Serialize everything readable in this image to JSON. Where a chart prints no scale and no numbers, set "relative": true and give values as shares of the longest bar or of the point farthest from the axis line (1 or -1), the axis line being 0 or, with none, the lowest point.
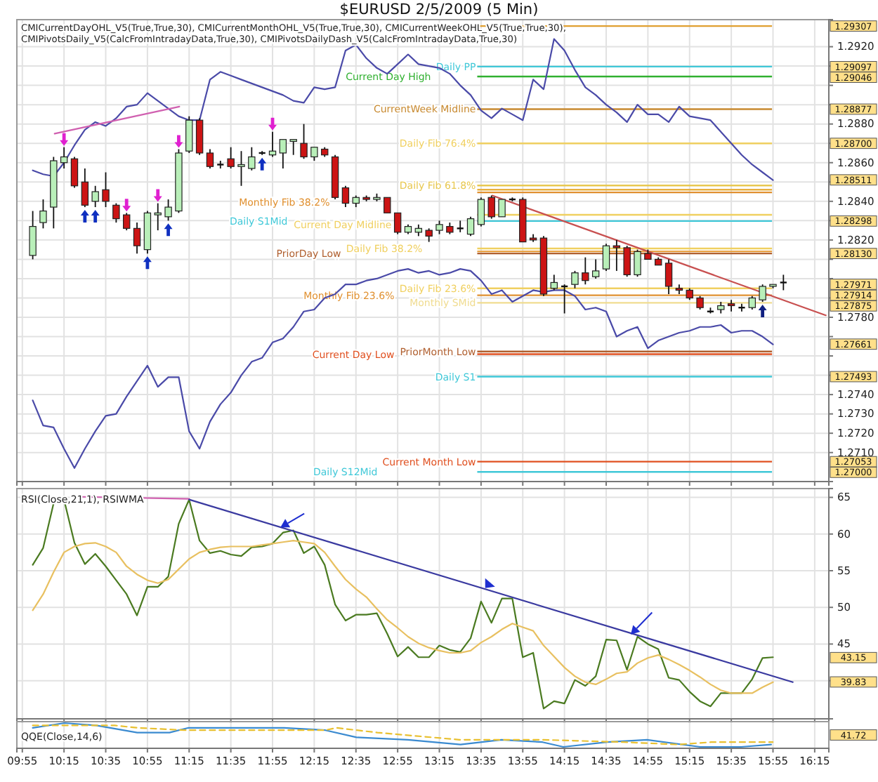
{
  "chart_data": [
    {
      "type": "candlestick",
      "title": "$EURUSD  2/5/2009 (5 Min)",
      "subtitle": "CMICurrentDayOHL_V5(True,True,30), CMICurrentMonthOHL_V5(True,True,30), CMICurrentWeekOHL_V5(True,True,30), CMIPivotsDaily_V5(CalcFromIntradayData,True,30), CMIPivotsDailyDash_V5(CalcFromIntradayData,True,30)",
      "x": [
        10,
        10.0833,
        10.1667,
        10.25,
        10.3333,
        10.4167,
        10.5,
        10.5833,
        10.6667,
        10.75,
        10.8333,
        10.9167,
        11,
        11.0833,
        11.1667,
        11.25,
        11.3333,
        11.4167,
        11.5,
        11.5833,
        11.6667,
        11.75,
        11.8333,
        11.9167,
        12,
        12.0833,
        12.1667,
        12.25,
        12.3333,
        12.4167,
        12.5,
        12.5833,
        12.6667,
        12.75,
        12.8333,
        12.9167,
        13,
        13.0833,
        13.1667,
        13.25,
        13.3333,
        13.4167,
        13.5,
        13.5833,
        13.6667,
        13.75,
        13.8333,
        13.9167,
        14,
        14.0833,
        14.1667,
        14.25,
        14.3333,
        14.4167,
        14.5,
        14.5833,
        14.6667,
        14.75,
        14.8333,
        14.9167,
        15,
        15.0833,
        15.1667,
        15.25,
        15.3333,
        15.4167,
        15.5,
        15.5833,
        15.6667,
        15.75,
        15.8333,
        15.9167,
        16
      ],
      "ohlc": [
        [
          1.2812,
          1.2835,
          1.281,
          1.2827
        ],
        [
          1.2829,
          1.2841,
          1.2826,
          1.2835
        ],
        [
          1.2837,
          1.2863,
          1.2826,
          1.2861
        ],
        [
          1.286,
          1.2868,
          1.2857,
          1.2863
        ],
        [
          1.2862,
          1.2863,
          1.2847,
          1.2848
        ],
        [
          1.285,
          1.2857,
          1.2837,
          1.2838
        ],
        [
          1.284,
          1.2848,
          1.2837,
          1.2845
        ],
        [
          1.2846,
          1.2855,
          1.2837,
          1.284
        ],
        [
          1.2838,
          1.2839,
          1.2829,
          1.2831
        ],
        [
          1.2833,
          1.2834,
          1.2825,
          1.2826
        ],
        [
          1.2826,
          1.2829,
          1.2813,
          1.2817
        ],
        [
          1.2815,
          1.2835,
          1.2813,
          1.2834
        ],
        [
          1.2833,
          1.2839,
          1.2825,
          1.2834
        ],
        [
          1.2832,
          1.2841,
          1.283,
          1.2837
        ],
        [
          1.2835,
          1.2867,
          1.2834,
          1.2865
        ],
        [
          1.2866,
          1.2884,
          1.2865,
          1.2882
        ],
        [
          1.2882,
          1.2883,
          1.2864,
          1.2865
        ],
        [
          1.2865,
          1.2867,
          1.2857,
          1.2858
        ],
        [
          1.2859,
          1.2861,
          1.2857,
          1.2859
        ],
        [
          1.2862,
          1.2868,
          1.2857,
          1.2858
        ],
        [
          1.2858,
          1.2866,
          1.2848,
          1.2859
        ],
        [
          1.2857,
          1.2868,
          1.2856,
          1.2863
        ],
        [
          1.2865,
          1.2866,
          1.2864,
          1.2865
        ],
        [
          1.2864,
          1.2876,
          1.2863,
          1.2866
        ],
        [
          1.2865,
          1.2872,
          1.2857,
          1.2872
        ],
        [
          1.2871,
          1.2872,
          1.2864,
          1.2872
        ],
        [
          1.287,
          1.288,
          1.2862,
          1.2863
        ],
        [
          1.2863,
          1.2868,
          1.2861,
          1.2868
        ],
        [
          1.2867,
          1.2868,
          1.2863,
          1.2864
        ],
        [
          1.2863,
          1.2864,
          1.2841,
          1.2842
        ],
        [
          1.2847,
          1.2848,
          1.2837,
          1.2839
        ],
        [
          1.2839,
          1.2843,
          1.2837,
          1.2842
        ],
        [
          1.2842,
          1.2843,
          1.284,
          1.2841
        ],
        [
          1.2841,
          1.2844,
          1.284,
          1.2842
        ],
        [
          1.2842,
          1.2842,
          1.2834,
          1.2834
        ],
        [
          1.2834,
          1.2834,
          1.2823,
          1.2824
        ],
        [
          1.2824,
          1.2828,
          1.2823,
          1.2827
        ],
        [
          1.2824,
          1.2828,
          1.2822,
          1.2826
        ],
        [
          1.2825,
          1.2826,
          1.2819,
          1.2822
        ],
        [
          1.2825,
          1.283,
          1.2823,
          1.2828
        ],
        [
          1.2827,
          1.2829,
          1.2823,
          1.2824
        ],
        [
          1.2826,
          1.283,
          1.2824,
          1.2826
        ],
        [
          1.2823,
          1.2832,
          1.2822,
          1.2831
        ],
        [
          1.2828,
          1.2842,
          1.2827,
          1.2841
        ],
        [
          1.2842,
          1.2843,
          1.2831,
          1.2832
        ],
        [
          1.2832,
          1.2841,
          1.2832,
          1.2841
        ],
        [
          1.2841,
          1.2842,
          1.284,
          1.2841
        ],
        [
          1.2841,
          1.2842,
          1.2819,
          1.2819
        ],
        [
          1.2821,
          1.2823,
          1.2819,
          1.282
        ],
        [
          1.2821,
          1.2822,
          1.2791,
          1.2792
        ],
        [
          1.2795,
          1.2802,
          1.2794,
          1.2798
        ],
        [
          1.2796,
          1.2797,
          1.2782,
          1.2796
        ],
        [
          1.2797,
          1.2804,
          1.2795,
          1.2803
        ],
        [
          1.2803,
          1.2811,
          1.2797,
          1.2799
        ],
        [
          1.2801,
          1.281,
          1.28,
          1.2804
        ],
        [
          1.2805,
          1.2818,
          1.2804,
          1.2817
        ],
        [
          1.2817,
          1.282,
          1.2804,
          1.2816
        ],
        [
          1.2816,
          1.2817,
          1.2801,
          1.2802
        ],
        [
          1.2802,
          1.2815,
          1.2801,
          1.2814
        ],
        [
          1.2813,
          1.2815,
          1.281,
          1.281
        ],
        [
          1.281,
          1.2811,
          1.2807,
          1.2807
        ],
        [
          1.2808,
          1.281,
          1.2792,
          1.2796
        ],
        [
          1.2795,
          1.2797,
          1.2792,
          1.2794
        ],
        [
          1.2794,
          1.2795,
          1.2789,
          1.279
        ],
        [
          1.279,
          1.2791,
          1.2784,
          1.2785
        ],
        [
          1.2783,
          1.2785,
          1.2782,
          1.2783
        ],
        [
          1.2784,
          1.2788,
          1.2782,
          1.2786
        ],
        [
          1.2787,
          1.2789,
          1.2783,
          1.2786
        ],
        [
          1.2785,
          1.2787,
          1.2783,
          1.2785
        ],
        [
          1.2785,
          1.2791,
          1.2784,
          1.279
        ],
        [
          1.2789,
          1.2797,
          1.2788,
          1.2796
        ],
        [
          1.2796,
          1.2797,
          1.2795,
          1.2797
        ],
        [
          1.2798,
          1.2802,
          1.2794,
          1.2798
        ]
      ],
      "series": [
        {
          "type": "line",
          "color": "#4a4aa8",
          "values": [
            1.2856,
            1.2854,
            1.2853,
            1.286,
            1.2869,
            1.2877,
            1.2881,
            1.2879,
            1.2883,
            1.2889,
            1.289,
            1.2896,
            1.2892,
            1.2888,
            1.2884,
            1.2882,
            1.2882,
            1.2903,
            1.2907,
            1.2905,
            1.2903,
            1.2901,
            1.2899,
            1.2897,
            1.2895,
            1.2892,
            1.2891,
            1.2899,
            1.2898,
            1.2899,
            1.2918,
            1.2921,
            1.2914,
            1.2909,
            1.2906,
            1.2911,
            1.2916,
            1.2911,
            1.291,
            1.2909,
            1.2906,
            1.29,
            1.2895,
            1.2887,
            1.2883,
            1.2888,
            1.2885,
            1.2882,
            1.2903,
            1.2898,
            1.2924,
            1.2918,
            1.2908,
            1.2899,
            1.2895,
            1.289,
            1.2886,
            1.2881,
            1.289,
            1.2885,
            1.2885,
            1.2881,
            1.2889,
            1.2884,
            1.2883,
            1.2882,
            1.2876,
            1.287,
            1.2864,
            1.2859,
            1.2855,
            1.2851,
            null
          ]
        },
        {
          "type": "line",
          "color": "#4a4aa8",
          "values": [
            1.2737,
            1.2724,
            1.2723,
            1.2712,
            1.2702,
            1.2712,
            1.2721,
            1.2729,
            1.273,
            1.2739,
            1.2747,
            1.2755,
            1.2744,
            1.2749,
            1.2749,
            1.2721,
            1.2712,
            1.2726,
            1.2735,
            1.2741,
            1.275,
            1.2757,
            1.2759,
            1.2767,
            1.2769,
            1.2775,
            1.2783,
            1.2784,
            1.279,
            1.2792,
            1.2797,
            1.2797,
            1.2799,
            1.28,
            1.2802,
            1.2804,
            1.2805,
            1.2803,
            1.2804,
            1.2802,
            1.2803,
            1.2805,
            1.2804,
            1.2799,
            1.2792,
            1.2794,
            1.2788,
            1.2791,
            1.2794,
            1.2793,
            1.2794,
            1.2794,
            1.2791,
            1.2784,
            1.2785,
            1.2783,
            1.277,
            1.2773,
            1.2775,
            1.2764,
            1.2768,
            1.277,
            1.2772,
            1.2773,
            1.2775,
            1.2775,
            1.2776,
            1.2772,
            1.2773,
            1.2773,
            1.277,
            1.2766,
            null
          ]
        },
        {
          "type": "line",
          "color": "#d060b0",
          "x": [
            10.175,
            11.172
          ],
          "values": [
            1.2875,
            1.2889
          ]
        },
        {
          "type": "line",
          "color": "#c85050",
          "x": [
            13.673,
            16.339
          ],
          "values": [
            1.2843,
            1.2781
          ]
        }
      ],
      "ref_lines": [
        {
          "axis": "y",
          "value": 1.29307,
          "label": null,
          "color": "#e0a030"
        },
        {
          "axis": "y",
          "value": 1.29097,
          "label": "Daily PP",
          "color": "#40c8d8"
        },
        {
          "axis": "y",
          "value": 1.29046,
          "label": "Current Day High",
          "color": "#30b030"
        },
        {
          "axis": "y",
          "value": 1.28877,
          "label": "CurrentWeek Midline",
          "color": "#c88a30"
        },
        {
          "axis": "y",
          "value": 1.287,
          "label": "Daily Fib 76.4%",
          "color": "#f0d060"
        },
        {
          "axis": "y",
          "value": 1.28482,
          "label": "Daily Fib 61.8%",
          "color": "#e8c850"
        },
        {
          "axis": "y",
          "value": 1.2846,
          "label": null,
          "color": "#e8b040"
        },
        {
          "axis": "y",
          "value": 1.28446,
          "label": "Monthly Fib 38.2%",
          "color": "#e09030"
        },
        {
          "axis": "y",
          "value": 1.2833,
          "label": "Current Day Midline",
          "color": "#f0d060"
        },
        {
          "axis": "y",
          "value": 1.28298,
          "label": "Daily S1Mid",
          "color": "#40c8d8"
        },
        {
          "axis": "y",
          "value": 1.28156,
          "label": "Daily Fib 38.2%",
          "color": "#f0d060"
        },
        {
          "axis": "y",
          "value": 1.28141,
          "label": null,
          "color": "#e8a040"
        },
        {
          "axis": "y",
          "value": 1.2813,
          "label": "PriorDay Low",
          "color": "#b06030"
        },
        {
          "axis": "y",
          "value": 1.2795,
          "label": "Daily Fib 23.6%",
          "color": "#f0d060"
        },
        {
          "axis": "y",
          "value": 1.27914,
          "label": "Monthly Fib 23.6%",
          "color": "#e09030"
        },
        {
          "axis": "y",
          "value": 1.27875,
          "label": "Monthly SMid",
          "color": "#f0dc90"
        },
        {
          "axis": "y",
          "value": 1.27623,
          "label": "PriorMonth Low",
          "color": "#b06030"
        },
        {
          "axis": "y",
          "value": 1.27609,
          "label": "Current Day Low",
          "color": "#e05020"
        },
        {
          "axis": "y",
          "value": 1.27493,
          "label": "Daily S1",
          "color": "#40c8d8"
        },
        {
          "axis": "y",
          "value": 1.27053,
          "label": "Current Month Low",
          "color": "#e05020"
        },
        {
          "axis": "y",
          "value": 1.27,
          "label": "Daily S12Mid",
          "color": "#40c8d8"
        }
      ],
      "annotations": [
        "1.29307",
        "1.29097",
        "1.29046",
        "1.28877",
        "1.28700",
        "1.28511",
        "1.28298",
        "1.28130",
        "1.27971",
        "1.27914",
        "1.27875",
        "1.27661",
        "1.27493",
        "1.27053",
        "1.27000"
      ],
      "xlim": [
        9.873,
        16.363
      ],
      "ylim": [
        1.2695,
        1.2934
      ],
      "xticks": [
        9.9167,
        10.25,
        10.5833,
        10.9167,
        11.25,
        11.5833,
        11.9167,
        12.25,
        12.5833,
        12.9167,
        13.25,
        13.5833,
        13.9167,
        14.25,
        14.5833,
        14.9167,
        15.25,
        15.5833,
        15.9167,
        16.25
      ],
      "yticks": [
        {
          "value": 1.271,
          "label": "1.2710"
        },
        {
          "value": 1.272,
          "label": "1.2720"
        },
        {
          "value": 1.273,
          "label": "1.2730"
        },
        {
          "value": 1.274,
          "label": "1.2740"
        },
        {
          "value": 1.275,
          "label": null
        },
        {
          "value": 1.276,
          "label": null
        },
        {
          "value": 1.277,
          "label": null
        },
        {
          "value": 1.278,
          "label": "1.2780"
        },
        {
          "value": 1.279,
          "label": null
        },
        {
          "value": 1.28,
          "label": null
        },
        {
          "value": 1.281,
          "label": null
        },
        {
          "value": 1.282,
          "label": "1.2820"
        },
        {
          "value": 1.283,
          "label": null
        },
        {
          "value": 1.284,
          "label": "1.2840"
        },
        {
          "value": 1.285,
          "label": null
        },
        {
          "value": 1.286,
          "label": "1.2860"
        },
        {
          "value": 1.287,
          "label": null
        },
        {
          "value": 1.288,
          "label": "1.2880"
        },
        {
          "value": 1.289,
          "label": null
        },
        {
          "value": 1.29,
          "label": null
        },
        {
          "value": 1.291,
          "label": null
        },
        {
          "value": 1.292,
          "label": "1.2920"
        }
      ],
      "grid": true,
      "tick_labels": "y"
    },
    {
      "type": "line",
      "title": "RSI(Close,21,1), RSIWMA",
      "x": [
        10,
        10.0833,
        10.1667,
        10.25,
        10.3333,
        10.4167,
        10.5,
        10.5833,
        10.6667,
        10.75,
        10.8333,
        10.9167,
        11,
        11.0833,
        11.1667,
        11.25,
        11.3333,
        11.4167,
        11.5,
        11.5833,
        11.6667,
        11.75,
        11.8333,
        11.9167,
        12,
        12.0833,
        12.1667,
        12.25,
        12.3333,
        12.4167,
        12.5,
        12.5833,
        12.6667,
        12.75,
        12.8333,
        12.9167,
        13,
        13.0833,
        13.1667,
        13.25,
        13.3333,
        13.4167,
        13.5,
        13.5833,
        13.6667,
        13.75,
        13.8333,
        13.9167,
        14,
        14.0833,
        14.1667,
        14.25,
        14.3333,
        14.4167,
        14.5,
        14.5833,
        14.6667,
        14.75,
        14.8333,
        14.9167,
        15,
        15.0833,
        15.1667,
        15.25,
        15.3333,
        15.4167,
        15.5,
        15.5833,
        15.6667,
        15.75,
        15.8333,
        15.9167
      ],
      "series": [
        {
          "color": "#4a7a20",
          "values": [
            55.8,
            58.1,
            64.2,
            64.7,
            58.8,
            55.9,
            57.3,
            55.6,
            53.7,
            51.8,
            48.9,
            52.8,
            52.8,
            54.2,
            61.4,
            64.7,
            59.1,
            57.4,
            57.7,
            57.2,
            57.0,
            58.2,
            58.3,
            58.7,
            60.2,
            60.5,
            57.4,
            58.3,
            55.8,
            50.4,
            48.2,
            49.0,
            49.0,
            49.2,
            46.4,
            43.3,
            44.6,
            43.2,
            43.2,
            44.8,
            44.2,
            43.9,
            45.8,
            50.8,
            47.9,
            51.2,
            51.2,
            43.2,
            43.8,
            36.2,
            37.2,
            36.9,
            40.1,
            39.3,
            40.6,
            45.6,
            45.5,
            41.5,
            46.0,
            45.0,
            44.3,
            40.4,
            40.1,
            38.5,
            37.2,
            36.5,
            38.3,
            38.3,
            38.3,
            40.2,
            43.1,
            43.2
          ]
        },
        {
          "color": "#e8c060",
          "values": [
            49.6,
            51.8,
            54.8,
            57.5,
            58.3,
            58.7,
            58.8,
            58.3,
            57.5,
            55.6,
            54.5,
            53.7,
            53.3,
            53.8,
            55.2,
            56.6,
            57.5,
            57.9,
            58.2,
            58.3,
            58.3,
            58.3,
            58.5,
            58.7,
            58.9,
            59.1,
            58.9,
            58.7,
            57.5,
            55.6,
            53.8,
            52.5,
            51.4,
            49.8,
            48.3,
            47.2,
            46.0,
            45.1,
            44.5,
            44.1,
            43.8,
            43.8,
            44.1,
            45.2,
            46.0,
            47.0,
            47.8,
            47.3,
            46.8,
            44.8,
            43.3,
            41.8,
            40.6,
            39.8,
            39.5,
            40.2,
            41.0,
            41.2,
            42.4,
            43.1,
            43.5,
            42.9,
            42.2,
            41.4,
            40.5,
            39.5,
            38.7,
            38.3,
            38.3,
            38.3,
            39.1,
            39.8
          ]
        },
        {
          "color": "#d060b0",
          "x": [
            10.33,
            11.25
          ],
          "values": [
            65.1,
            64.8
          ]
        },
        {
          "color": "#3a3aa0",
          "x": [
            11.25,
            16.075
          ],
          "values": [
            64.7,
            39.8
          ]
        }
      ],
      "annotations": [
        "43.15",
        "39.83"
      ],
      "xlim": [
        9.873,
        16.363
      ],
      "ylim": [
        34.8,
        66.2
      ],
      "xticks": [
        9.9167,
        10.25,
        10.5833,
        10.9167,
        11.25,
        11.5833,
        11.9167,
        12.25,
        12.5833,
        12.9167,
        13.25,
        13.5833,
        13.9167,
        14.25,
        14.5833,
        14.9167,
        15.25,
        15.5833,
        15.9167,
        16.25
      ],
      "yticks": [
        {
          "value": 40,
          "label": null
        },
        45,
        50,
        55,
        60,
        65
      ],
      "grid": true,
      "tick_labels": "y"
    },
    {
      "type": "line",
      "title": "QQE(Close,14,6)",
      "relative": true,
      "series": [
        {
          "color": "#3a8ad0",
          "x": [
            10,
            10.254,
            10.507,
            10.835,
            11.093,
            11.246,
            11.749,
            12.011,
            12.339,
            12.588,
            12.999,
            13.419,
            13.747,
            14.075,
            14.241,
            14.591,
            14.91,
            15.334,
            15.662,
            15.902
          ],
          "values": [
            0.8,
            1,
            0.9,
            0.6,
            0.6,
            0.8,
            0.8,
            0.8,
            0.7,
            0.4,
            0.3,
            0.1,
            0.3,
            0.2,
            0,
            0.2,
            0.3,
            0,
            0,
            0.1
          ]
        },
        {
          "color": "#e8c030",
          "line_style": "dashed",
          "x": [
            10,
            10.656,
            10.835,
            11.224,
            12.339,
            12.427,
            12.755,
            13.41,
            13.848,
            14.066,
            14.722,
            15.159,
            15.421,
            15.915
          ],
          "values": [
            0.9,
            0.9,
            0.8,
            0.7,
            0.7,
            0.8,
            0.6,
            0.3,
            0.3,
            0.3,
            0.2,
            0.1,
            0.2,
            0.2
          ]
        }
      ],
      "annotations": [
        "41.72"
      ],
      "xlim": [
        9.873,
        16.363
      ],
      "xticks": [
        {
          "value": 9.9167,
          "label": "09:55"
        },
        {
          "value": 10.25,
          "label": "10:15"
        },
        {
          "value": 10.5833,
          "label": "10:35"
        },
        {
          "value": 10.9167,
          "label": "10:55"
        },
        {
          "value": 11.25,
          "label": "11:15"
        },
        {
          "value": 11.5833,
          "label": "11:35"
        },
        {
          "value": 11.9167,
          "label": "11:55"
        },
        {
          "value": 12.25,
          "label": "12:15"
        },
        {
          "value": 12.5833,
          "label": "12:35"
        },
        {
          "value": 12.9167,
          "label": "12:55"
        },
        {
          "value": 13.25,
          "label": "13:15"
        },
        {
          "value": 13.5833,
          "label": "13:35"
        },
        {
          "value": 13.9167,
          "label": "13:55"
        },
        {
          "value": 14.25,
          "label": "14:15"
        },
        {
          "value": 14.5833,
          "label": "14:35"
        },
        {
          "value": 14.9167,
          "label": "14:55"
        },
        {
          "value": 15.25,
          "label": "15:15"
        },
        {
          "value": 15.5833,
          "label": "15:35"
        },
        {
          "value": 15.9167,
          "label": "15:55"
        },
        {
          "value": 16.25,
          "label": "16:15"
        }
      ],
      "grid": "x",
      "tick_labels": "x"
    }
  ]
}
